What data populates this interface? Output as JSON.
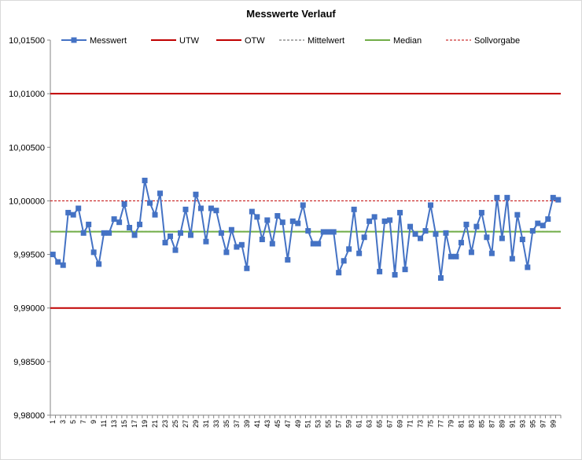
{
  "chart_data": {
    "type": "line",
    "title": "Messwerte Verlauf",
    "ylim": [
      9.98,
      10.015
    ],
    "y_ticks": [
      9.98,
      9.985,
      9.99,
      9.995,
      10.0,
      10.005,
      10.01,
      10.015
    ],
    "y_tick_labels": [
      "9,98000",
      "9,98500",
      "9,99000",
      "9,99500",
      "10,00000",
      "10,00500",
      "10,01000",
      "10,01500"
    ],
    "x": [
      1,
      2,
      3,
      4,
      5,
      6,
      7,
      8,
      9,
      10,
      11,
      12,
      13,
      14,
      15,
      16,
      17,
      18,
      19,
      20,
      21,
      22,
      23,
      24,
      25,
      26,
      27,
      28,
      29,
      30,
      31,
      32,
      33,
      34,
      35,
      36,
      37,
      38,
      39,
      40,
      41,
      42,
      43,
      44,
      45,
      46,
      47,
      48,
      49,
      50,
      51,
      52,
      53,
      54,
      55,
      56,
      57,
      58,
      59,
      60,
      61,
      62,
      63,
      64,
      65,
      66,
      67,
      68,
      69,
      70,
      71,
      72,
      73,
      74,
      75,
      76,
      77,
      78,
      79,
      80,
      81,
      82,
      83,
      84,
      85,
      86,
      87,
      88,
      89,
      90,
      91,
      92,
      93,
      94,
      95,
      96,
      97,
      98,
      99,
      100
    ],
    "x_tick_labels": [
      "1",
      "3",
      "5",
      "7",
      "9",
      "11",
      "13",
      "15",
      "17",
      "19",
      "21",
      "23",
      "25",
      "27",
      "29",
      "31",
      "33",
      "35",
      "37",
      "39",
      "41",
      "43",
      "45",
      "47",
      "49",
      "51",
      "53",
      "55",
      "57",
      "59",
      "61",
      "63",
      "65",
      "67",
      "69",
      "71",
      "73",
      "75",
      "77",
      "79",
      "81",
      "83",
      "85",
      "87",
      "89",
      "91",
      "93",
      "95",
      "97",
      "99"
    ],
    "series": [
      {
        "name": "Messwert",
        "color": "#4472c4",
        "marker": "square",
        "values": [
          9.995,
          9.9943,
          9.994,
          9.9989,
          9.9987,
          9.9993,
          9.997,
          9.9978,
          9.9952,
          9.9941,
          9.997,
          9.997,
          9.9983,
          9.998,
          9.9997,
          9.9975,
          9.9968,
          9.9978,
          10.0019,
          9.9998,
          9.9987,
          10.0007,
          9.9961,
          9.9967,
          9.9954,
          9.997,
          9.9992,
          9.9968,
          10.0006,
          9.9993,
          9.9962,
          9.9993,
          9.9991,
          9.997,
          9.9952,
          9.9973,
          9.9957,
          9.9959,
          9.9937,
          9.999,
          9.9985,
          9.9964,
          9.9982,
          9.996,
          9.9986,
          9.998,
          9.9945,
          9.9981,
          9.9979,
          9.9996,
          9.9972,
          9.996,
          9.996,
          9.9971,
          9.9971,
          9.9971,
          9.9933,
          9.9944,
          9.9955,
          9.9992,
          9.9951,
          9.9966,
          9.9981,
          9.9985,
          9.9934,
          9.9981,
          9.9982,
          9.9931,
          9.9989,
          9.9936,
          9.9976,
          9.9969,
          9.9965,
          9.9972,
          9.9996,
          9.9969,
          9.9928,
          9.997,
          9.9948,
          9.9948,
          9.9961,
          9.9978,
          9.9952,
          9.9976,
          9.9989,
          9.9966,
          9.9951,
          10.0003,
          9.9965,
          10.0003,
          9.9946,
          9.9987,
          9.9964,
          9.9938,
          9.9972,
          9.9979,
          9.9977,
          9.9983,
          10.0003,
          10.0001
        ]
      },
      {
        "name": "UTW",
        "color": "#c00000",
        "dash": "solid",
        "value": 9.99
      },
      {
        "name": "OTW",
        "color": "#c00000",
        "dash": "solid",
        "value": 10.01
      },
      {
        "name": "Mittelwert",
        "color": "#595959",
        "dash": "dashed",
        "value": 9.99714
      },
      {
        "name": "Median",
        "color": "#70ad47",
        "dash": "solid",
        "value": 9.99712
      },
      {
        "name": "Sollvorgabe",
        "color": "#c00000",
        "dash": "dashed",
        "value": 10.0
      }
    ],
    "legend_position": "top",
    "grid": false
  }
}
